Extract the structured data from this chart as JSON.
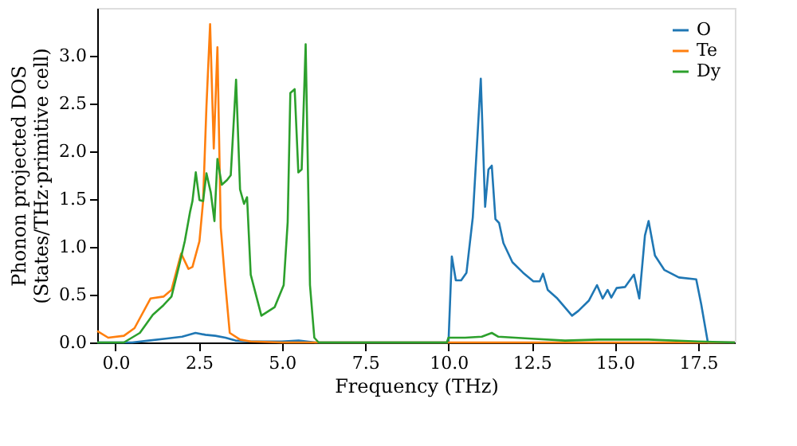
{
  "chart_data": {
    "type": "line",
    "xlabel": "Frequency (THz)",
    "ylabel": "Phonon projected DOS\n(States/THz·primitive cell)",
    "xlim": [
      -0.55,
      18.6
    ],
    "ylim": [
      0,
      3.5
    ],
    "xticks": [
      {
        "value": 0,
        "label": "0.0"
      },
      {
        "value": 2.5,
        "label": "2.5"
      },
      {
        "value": 5,
        "label": "5.0"
      },
      {
        "value": 7.5,
        "label": "7.5"
      },
      {
        "value": 10,
        "label": "10.0"
      },
      {
        "value": 12.5,
        "label": "12.5"
      },
      {
        "value": 15,
        "label": "15.0"
      },
      {
        "value": 17.5,
        "label": "17.5"
      }
    ],
    "yticks": [
      {
        "value": 0,
        "label": "0.0"
      },
      {
        "value": 0.5,
        "label": "0.5"
      },
      {
        "value": 1,
        "label": "1.0"
      },
      {
        "value": 1.5,
        "label": "1.5"
      },
      {
        "value": 2,
        "label": "2.0"
      },
      {
        "value": 2.5,
        "label": "2.5"
      },
      {
        "value": 3,
        "label": "3.0"
      }
    ],
    "grid": false,
    "legend": "top right",
    "line_style": "solid",
    "series": [
      {
        "name": "O",
        "color": "#1f77b4",
        "x": [
          -0.55,
          0.5,
          1.0,
          1.5,
          2.0,
          2.4,
          2.7,
          3.0,
          3.3,
          3.6,
          4.0,
          5.0,
          5.5,
          6.0,
          9.95,
          10.0,
          10.1,
          10.22,
          10.38,
          10.54,
          10.73,
          10.97,
          11.1,
          11.2,
          11.3,
          11.41,
          11.52,
          11.65,
          11.92,
          12.24,
          12.55,
          12.74,
          12.84,
          12.98,
          13.27,
          13.71,
          13.9,
          14.22,
          14.46,
          14.63,
          14.78,
          14.89,
          15.05,
          15.3,
          15.57,
          15.73,
          15.9,
          16.01,
          16.2,
          16.48,
          16.92,
          17.44,
          17.59,
          17.79,
          18.6
        ],
        "values": [
          0.0,
          0.0,
          0.02,
          0.04,
          0.06,
          0.1,
          0.08,
          0.07,
          0.05,
          0.02,
          0.01,
          0.01,
          0.02,
          0.0,
          0.0,
          0.0,
          0.9,
          0.65,
          0.65,
          0.73,
          1.31,
          2.76,
          1.42,
          1.81,
          1.85,
          1.29,
          1.25,
          1.04,
          0.84,
          0.73,
          0.64,
          0.64,
          0.72,
          0.55,
          0.46,
          0.28,
          0.33,
          0.44,
          0.6,
          0.46,
          0.55,
          0.47,
          0.57,
          0.58,
          0.71,
          0.46,
          1.12,
          1.27,
          0.91,
          0.76,
          0.68,
          0.66,
          0.4,
          0.0,
          0.0
        ]
      },
      {
        "name": "Te",
        "color": "#ff7f0e",
        "x": [
          -0.55,
          -0.22,
          0.25,
          0.57,
          1.05,
          1.44,
          1.68,
          1.97,
          2.19,
          2.31,
          2.52,
          2.63,
          2.73,
          2.84,
          2.95,
          3.06,
          3.16,
          3.3,
          3.43,
          3.74,
          4.06,
          5.0,
          18.6
        ],
        "values": [
          0.12,
          0.05,
          0.07,
          0.15,
          0.46,
          0.48,
          0.55,
          0.93,
          0.77,
          0.79,
          1.06,
          1.48,
          2.47,
          3.33,
          2.03,
          3.09,
          1.2,
          0.6,
          0.1,
          0.03,
          0.01,
          0.0,
          0.0
        ]
      },
      {
        "name": "Dy",
        "color": "#2ca02c",
        "x": [
          -0.55,
          0.25,
          0.73,
          1.12,
          1.44,
          1.68,
          1.92,
          2.08,
          2.24,
          2.31,
          2.41,
          2.52,
          2.63,
          2.73,
          2.86,
          2.97,
          3.06,
          3.19,
          3.35,
          3.46,
          3.62,
          3.74,
          3.86,
          3.95,
          4.06,
          4.38,
          4.78,
          5.05,
          5.17,
          5.25,
          5.38,
          5.49,
          5.59,
          5.71,
          5.84,
          5.97,
          6.1,
          9.95,
          10.0,
          10.5,
          11.0,
          11.3,
          11.5,
          12.5,
          13.5,
          14.5,
          16.0,
          17.5,
          18.6
        ],
        "values": [
          0.0,
          0.0,
          0.1,
          0.29,
          0.39,
          0.48,
          0.82,
          1.06,
          1.37,
          1.48,
          1.78,
          1.49,
          1.48,
          1.77,
          1.57,
          1.27,
          1.92,
          1.65,
          1.7,
          1.75,
          2.75,
          1.6,
          1.45,
          1.52,
          0.71,
          0.28,
          0.37,
          0.6,
          1.26,
          2.61,
          2.65,
          1.78,
          1.81,
          3.12,
          0.6,
          0.05,
          0.0,
          0.0,
          0.05,
          0.05,
          0.06,
          0.1,
          0.06,
          0.04,
          0.02,
          0.03,
          0.03,
          0.01,
          0.0
        ]
      }
    ]
  }
}
